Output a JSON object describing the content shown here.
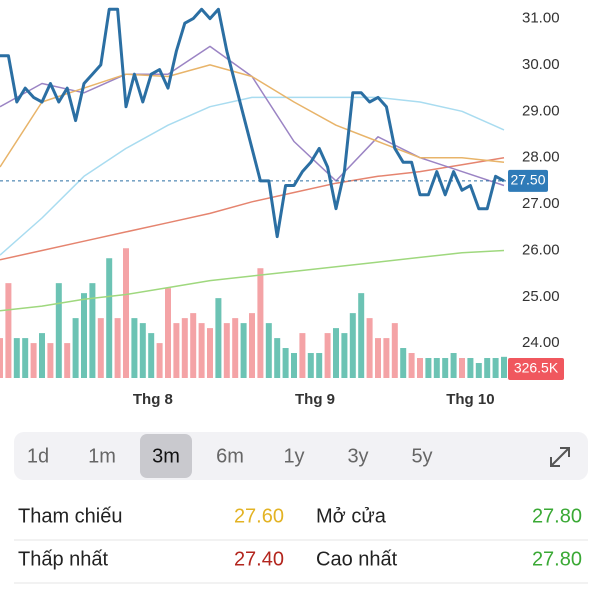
{
  "chart_data": {
    "type": "line",
    "xlim": [
      0,
      60
    ],
    "ylim": [
      23.1,
      31.4
    ],
    "yticks": [
      {
        "value": 31,
        "label": "31.00"
      },
      {
        "value": 30,
        "label": "30.00"
      },
      {
        "value": 29,
        "label": "29.00"
      },
      {
        "value": 28,
        "label": "28.00"
      },
      {
        "value": 27,
        "label": "27.00"
      },
      {
        "value": 26,
        "label": "26.00"
      },
      {
        "value": 25,
        "label": "25.00"
      },
      {
        "value": 24,
        "label": "24.00"
      }
    ],
    "xticks": [
      {
        "value": 18.2,
        "label": "Thg 8"
      },
      {
        "value": 37.5,
        "label": "Thg 9"
      },
      {
        "value": 56,
        "label": "Thg 10"
      }
    ],
    "series": [
      {
        "color": "#2b6fa3",
        "values": [
          30.2,
          30.2,
          29.2,
          29.5,
          29.3,
          29.2,
          29.6,
          29.2,
          29.5,
          28.8,
          29.6,
          29.8,
          30.0,
          31.2,
          31.2,
          29.1,
          29.8,
          29.2,
          29.8,
          29.9,
          29.5,
          30.3,
          30.9,
          31.0,
          31.2,
          31.0,
          31.2,
          30.3,
          29.6,
          28.9,
          28.2,
          27.5,
          27.5,
          26.3,
          27.4,
          27.4,
          27.7,
          27.9,
          28.2,
          27.8,
          26.9,
          27.7,
          29.4,
          29.4,
          29.2,
          29.3,
          29.1,
          28.2,
          27.9,
          27.9,
          27.2,
          27.2,
          27.7,
          27.2,
          27.7,
          27.3,
          27.4,
          26.9,
          26.9,
          27.6,
          27.5
        ]
      },
      {
        "color": "#e8b46a",
        "x": [
          0,
          5,
          10,
          15,
          20,
          25,
          30,
          35,
          40,
          45,
          50,
          55,
          60
        ],
        "values": [
          27.8,
          29.2,
          29.5,
          29.8,
          29.75,
          30.0,
          29.75,
          29.2,
          28.7,
          28.35,
          28.0,
          28.0,
          27.9
        ]
      },
      {
        "color": "#9b84c4",
        "x": [
          0,
          5,
          10,
          15,
          20,
          25,
          30,
          35,
          40,
          45,
          50,
          55,
          60
        ],
        "values": [
          29.1,
          29.6,
          29.4,
          29.8,
          29.8,
          30.4,
          29.75,
          28.35,
          27.5,
          28.45,
          28.0,
          27.7,
          27.4
        ]
      },
      {
        "color": "#a9dcf0",
        "x": [
          0,
          5,
          10,
          15,
          20,
          25,
          30,
          35,
          40,
          45,
          50,
          55,
          60
        ],
        "values": [
          25.9,
          26.7,
          27.6,
          28.2,
          28.7,
          29.1,
          29.3,
          29.3,
          29.3,
          29.3,
          29.2,
          29.0,
          28.6
        ]
      },
      {
        "color": "#e5846f",
        "x": [
          0,
          5,
          10,
          15,
          20,
          25,
          30,
          35,
          40,
          45,
          50,
          55,
          60
        ],
        "values": [
          25.8,
          26.0,
          26.2,
          26.4,
          26.6,
          26.8,
          27.05,
          27.25,
          27.45,
          27.6,
          27.7,
          27.85,
          28.0
        ]
      },
      {
        "color": "#9fd87e",
        "x": [
          0,
          5,
          10,
          15,
          20,
          25,
          30,
          35,
          40,
          45,
          50,
          55,
          60
        ],
        "values": [
          24.7,
          24.8,
          24.95,
          25.05,
          25.2,
          25.35,
          25.45,
          25.55,
          25.65,
          25.75,
          25.85,
          25.95,
          26.0
        ]
      }
    ],
    "last_price": {
      "value": 27.5,
      "label": "27.50",
      "color": "#2f7bb8"
    },
    "volume": {
      "ylim": [
        0,
        2050
      ],
      "values": [
        615,
        1462,
        615,
        615,
        538,
        692,
        538,
        1462,
        538,
        923,
        1308,
        1462,
        923,
        1846,
        923,
        2000,
        923,
        846,
        692,
        538,
        1385,
        846,
        923,
        1000,
        846,
        769,
        1231,
        846,
        923,
        846,
        1000,
        1692,
        846,
        615,
        462,
        385,
        692,
        385,
        385,
        692,
        769,
        692,
        1000,
        1308,
        923,
        615,
        615,
        846,
        462,
        385,
        308,
        308,
        308,
        308,
        385,
        308,
        308,
        231,
        308,
        308,
        326.5
      ],
      "colors": [
        "#f4a3a6",
        "#f4a3a6",
        "#6cc3b4",
        "#6cc3b4",
        "#f4a3a6",
        "#6cc3b4",
        "#f4a3a6",
        "#6cc3b4",
        "#f4a3a6",
        "#6cc3b4",
        "#6cc3b4",
        "#6cc3b4",
        "#f4a3a6",
        "#6cc3b4",
        "#f4a3a6",
        "#f4a3a6",
        "#6cc3b4",
        "#6cc3b4",
        "#6cc3b4",
        "#f4a3a6",
        "#f4a3a6",
        "#f4a3a6",
        "#f4a3a6",
        "#f4a3a6",
        "#f4a3a6",
        "#f4a3a6",
        "#6cc3b4",
        "#f4a3a6",
        "#f4a3a6",
        "#6cc3b4",
        "#f4a3a6",
        "#f4a3a6",
        "#6cc3b4",
        "#6cc3b4",
        "#6cc3b4",
        "#6cc3b4",
        "#f4a3a6",
        "#6cc3b4",
        "#6cc3b4",
        "#f4a3a6",
        "#6cc3b4",
        "#6cc3b4",
        "#6cc3b4",
        "#6cc3b4",
        "#f4a3a6",
        "#f4a3a6",
        "#f4a3a6",
        "#f4a3a6",
        "#6cc3b4",
        "#f4a3a6",
        "#f4a3a6",
        "#6cc3b4",
        "#6cc3b4",
        "#6cc3b4",
        "#6cc3b4",
        "#f4a3a6",
        "#6cc3b4",
        "#6cc3b4",
        "#6cc3b4",
        "#6cc3b4",
        "#6cc3b4"
      ],
      "last": {
        "value": 326.5,
        "label": "326.5K",
        "color": "#f0575e"
      }
    }
  },
  "ranges": {
    "items": [
      "1d",
      "1m",
      "3m",
      "6m",
      "1y",
      "3y",
      "5y"
    ],
    "selected": 2
  },
  "stats": [
    {
      "label": "Tham chiếu",
      "value": "27.60",
      "color": "#e3b324"
    },
    {
      "label": "Mở cửa",
      "value": "27.80",
      "color": "#3aa935"
    },
    {
      "label": "Thấp nhất",
      "value": "27.40",
      "color": "#b3261e"
    },
    {
      "label": "Cao nhất",
      "value": "27.80",
      "color": "#3aa935"
    }
  ]
}
